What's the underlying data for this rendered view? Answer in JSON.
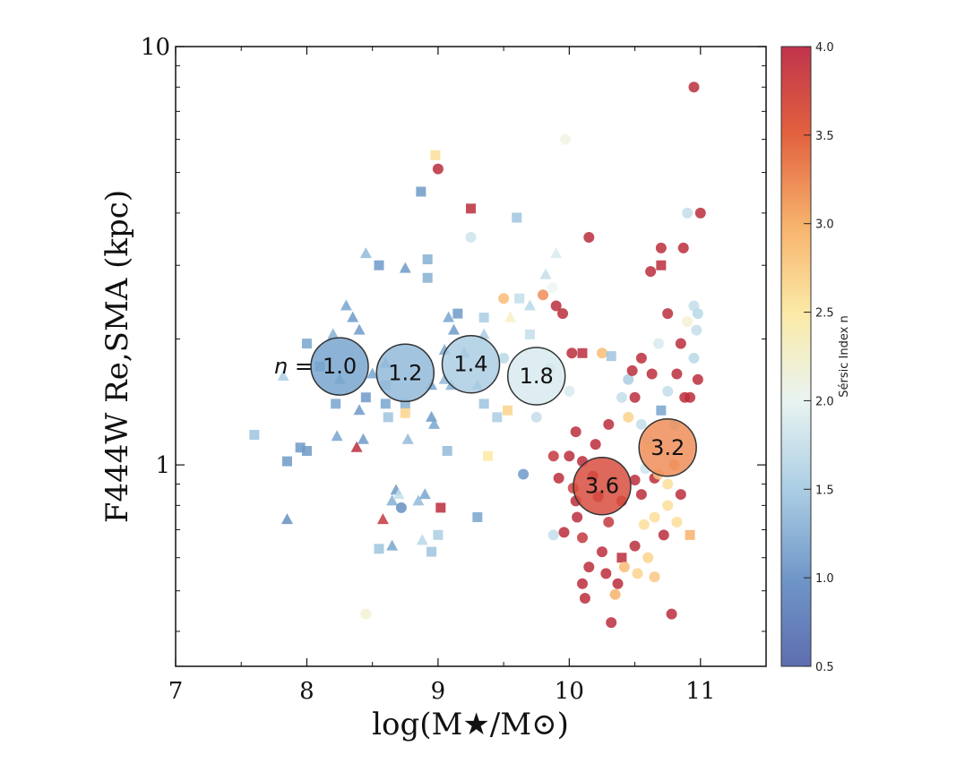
{
  "chart_data": {
    "type": "scatter",
    "xlabel": "log(M★/M⊙)",
    "ylabel": "F444W Re,SMA (kpc)",
    "xlim": [
      7,
      11.5
    ],
    "ylim": [
      0.33,
      10
    ],
    "yscale": "log",
    "x_ticks": [
      "7",
      "8",
      "9",
      "10",
      "11"
    ],
    "y_ticks": [
      "1",
      "10"
    ],
    "grid": false,
    "colorbar": {
      "label": "Sérsic Index n",
      "range": [
        0.5,
        4.0
      ],
      "ticks": [
        "0.5",
        "1.0",
        "1.5",
        "2.0",
        "2.5",
        "3.0",
        "3.5",
        "4.0"
      ],
      "colormap": "RdYlBu_r",
      "colors": [
        "#4c6cae",
        "#78a6cf",
        "#b8d8e8",
        "#eef6f2",
        "#fde9a4",
        "#f8b16b",
        "#e0593f",
        "#b2223b"
      ]
    },
    "n_prefix": "n =",
    "binned_medians": [
      {
        "x": 8.25,
        "y": 1.72,
        "n": 1.0,
        "label": "1.0"
      },
      {
        "x": 8.75,
        "y": 1.66,
        "n": 1.2,
        "label": "1.2"
      },
      {
        "x": 9.25,
        "y": 1.74,
        "n": 1.4,
        "label": "1.4"
      },
      {
        "x": 9.75,
        "y": 1.63,
        "n": 1.8,
        "label": "1.8"
      },
      {
        "x": 10.25,
        "y": 0.89,
        "n": 3.6,
        "label": "3.6"
      },
      {
        "x": 10.75,
        "y": 1.1,
        "n": 3.2,
        "label": "3.2"
      }
    ],
    "points": [
      {
        "x": 7.6,
        "y": 1.18,
        "n": 1.3,
        "m": "s"
      },
      {
        "x": 7.82,
        "y": 1.63,
        "n": 1.4,
        "m": "t"
      },
      {
        "x": 7.85,
        "y": 1.02,
        "n": 0.9,
        "m": "s"
      },
      {
        "x": 7.85,
        "y": 0.74,
        "n": 0.8,
        "m": "t"
      },
      {
        "x": 7.95,
        "y": 1.1,
        "n": 0.9,
        "m": "s"
      },
      {
        "x": 8.0,
        "y": 1.08,
        "n": 0.9,
        "m": "s"
      },
      {
        "x": 8.0,
        "y": 1.95,
        "n": 1.0,
        "m": "s"
      },
      {
        "x": 8.1,
        "y": 1.72,
        "n": 0.9,
        "m": "s"
      },
      {
        "x": 8.2,
        "y": 2.05,
        "n": 1.1,
        "m": "t"
      },
      {
        "x": 8.22,
        "y": 1.4,
        "n": 1.0,
        "m": "s"
      },
      {
        "x": 8.25,
        "y": 1.6,
        "n": 1.0,
        "m": "t"
      },
      {
        "x": 8.23,
        "y": 1.17,
        "n": 1.0,
        "m": "t"
      },
      {
        "x": 8.3,
        "y": 2.4,
        "n": 1.0,
        "m": "t"
      },
      {
        "x": 8.35,
        "y": 2.25,
        "n": 0.9,
        "m": "t"
      },
      {
        "x": 8.38,
        "y": 1.1,
        "n": 3.9,
        "m": "t"
      },
      {
        "x": 8.4,
        "y": 2.1,
        "n": 0.9,
        "m": "t"
      },
      {
        "x": 8.4,
        "y": 1.35,
        "n": 0.9,
        "m": "t"
      },
      {
        "x": 8.43,
        "y": 1.15,
        "n": 0.9,
        "m": "t"
      },
      {
        "x": 8.45,
        "y": 1.45,
        "n": 0.9,
        "m": "s"
      },
      {
        "x": 8.45,
        "y": 3.2,
        "n": 1.2,
        "m": "t"
      },
      {
        "x": 8.45,
        "y": 0.44,
        "n": 2.2,
        "m": "o"
      },
      {
        "x": 8.5,
        "y": 1.65,
        "n": 1.0,
        "m": "t"
      },
      {
        "x": 8.55,
        "y": 3.0,
        "n": 0.9,
        "m": "s"
      },
      {
        "x": 8.55,
        "y": 0.63,
        "n": 1.3,
        "m": "s"
      },
      {
        "x": 8.58,
        "y": 0.74,
        "n": 3.8,
        "m": "t"
      },
      {
        "x": 8.6,
        "y": 1.4,
        "n": 1.0,
        "m": "s"
      },
      {
        "x": 8.6,
        "y": 1.75,
        "n": 1.1,
        "m": "t"
      },
      {
        "x": 8.6,
        "y": 1.55,
        "n": 1.2,
        "m": "s"
      },
      {
        "x": 8.62,
        "y": 1.3,
        "n": 1.3,
        "m": "s"
      },
      {
        "x": 8.65,
        "y": 0.82,
        "n": 1.1,
        "m": "t"
      },
      {
        "x": 8.65,
        "y": 0.64,
        "n": 1.0,
        "m": "t"
      },
      {
        "x": 8.68,
        "y": 0.87,
        "n": 0.9,
        "m": "t"
      },
      {
        "x": 8.7,
        "y": 0.85,
        "n": 1.6,
        "m": "t"
      },
      {
        "x": 8.72,
        "y": 0.79,
        "n": 0.8,
        "m": "o"
      },
      {
        "x": 8.75,
        "y": 1.4,
        "n": 1.1,
        "m": "s"
      },
      {
        "x": 8.75,
        "y": 2.95,
        "n": 0.9,
        "m": "t"
      },
      {
        "x": 8.77,
        "y": 1.15,
        "n": 1.2,
        "m": "t"
      },
      {
        "x": 8.75,
        "y": 1.33,
        "n": 2.7,
        "m": "s"
      },
      {
        "x": 8.85,
        "y": 0.82,
        "n": 1.2,
        "m": "t"
      },
      {
        "x": 8.87,
        "y": 4.5,
        "n": 0.9,
        "m": "s"
      },
      {
        "x": 8.9,
        "y": 0.85,
        "n": 1.0,
        "m": "t"
      },
      {
        "x": 8.92,
        "y": 2.8,
        "n": 1.1,
        "m": "s"
      },
      {
        "x": 8.92,
        "y": 3.1,
        "n": 1.1,
        "m": "s"
      },
      {
        "x": 8.95,
        "y": 1.55,
        "n": 1.0,
        "m": "t"
      },
      {
        "x": 8.95,
        "y": 1.3,
        "n": 0.9,
        "m": "t"
      },
      {
        "x": 8.97,
        "y": 1.25,
        "n": 1.0,
        "m": "t"
      },
      {
        "x": 8.98,
        "y": 5.5,
        "n": 2.6,
        "m": "s"
      },
      {
        "x": 9.0,
        "y": 5.1,
        "n": 3.9,
        "m": "o"
      },
      {
        "x": 8.95,
        "y": 0.62,
        "n": 1.3,
        "m": "s"
      },
      {
        "x": 8.88,
        "y": 0.66,
        "n": 1.5,
        "m": "t"
      },
      {
        "x": 9.0,
        "y": 0.68,
        "n": 1.4,
        "m": "s"
      },
      {
        "x": 9.02,
        "y": 0.79,
        "n": 3.9,
        "m": "s"
      },
      {
        "x": 9.05,
        "y": 1.6,
        "n": 1.2,
        "m": "t"
      },
      {
        "x": 9.05,
        "y": 1.88,
        "n": 1.0,
        "m": "t"
      },
      {
        "x": 9.07,
        "y": 1.08,
        "n": 1.2,
        "m": "s"
      },
      {
        "x": 9.08,
        "y": 2.25,
        "n": 1.0,
        "m": "t"
      },
      {
        "x": 9.1,
        "y": 1.55,
        "n": 1.1,
        "m": "t"
      },
      {
        "x": 9.12,
        "y": 2.1,
        "n": 0.9,
        "m": "t"
      },
      {
        "x": 9.15,
        "y": 2.3,
        "n": 0.9,
        "m": "s"
      },
      {
        "x": 9.2,
        "y": 1.85,
        "n": 1.1,
        "m": "t"
      },
      {
        "x": 9.25,
        "y": 3.5,
        "n": 1.7,
        "m": "o"
      },
      {
        "x": 9.25,
        "y": 4.1,
        "n": 3.9,
        "m": "s"
      },
      {
        "x": 9.3,
        "y": 1.55,
        "n": 1.2,
        "m": "t"
      },
      {
        "x": 9.3,
        "y": 0.75,
        "n": 1.0,
        "m": "s"
      },
      {
        "x": 9.35,
        "y": 1.4,
        "n": 1.3,
        "m": "s"
      },
      {
        "x": 9.35,
        "y": 2.05,
        "n": 1.4,
        "m": "t"
      },
      {
        "x": 9.35,
        "y": 2.25,
        "n": 1.4,
        "m": "s"
      },
      {
        "x": 9.38,
        "y": 1.05,
        "n": 2.5,
        "m": "s"
      },
      {
        "x": 9.45,
        "y": 1.3,
        "n": 1.4,
        "m": "s"
      },
      {
        "x": 9.5,
        "y": 1.8,
        "n": 1.5,
        "m": "o"
      },
      {
        "x": 9.5,
        "y": 2.5,
        "n": 2.9,
        "m": "o"
      },
      {
        "x": 9.53,
        "y": 1.35,
        "n": 2.7,
        "m": "s"
      },
      {
        "x": 9.55,
        "y": 2.25,
        "n": 2.3,
        "m": "t"
      },
      {
        "x": 9.6,
        "y": 3.9,
        "n": 1.3,
        "m": "s"
      },
      {
        "x": 9.62,
        "y": 2.5,
        "n": 1.6,
        "m": "s"
      },
      {
        "x": 9.65,
        "y": 0.95,
        "n": 0.9,
        "m": "o"
      },
      {
        "x": 9.7,
        "y": 2.4,
        "n": 1.5,
        "m": "t"
      },
      {
        "x": 9.7,
        "y": 2.05,
        "n": 1.6,
        "m": "s"
      },
      {
        "x": 9.75,
        "y": 1.3,
        "n": 1.6,
        "m": "o"
      },
      {
        "x": 9.8,
        "y": 2.55,
        "n": 3.2,
        "m": "o"
      },
      {
        "x": 9.82,
        "y": 2.85,
        "n": 1.6,
        "m": "t"
      },
      {
        "x": 9.85,
        "y": 1.7,
        "n": 1.5,
        "m": "o"
      },
      {
        "x": 9.88,
        "y": 0.68,
        "n": 1.6,
        "m": "o"
      },
      {
        "x": 9.87,
        "y": 2.65,
        "n": 2.0,
        "m": "o"
      },
      {
        "x": 9.88,
        "y": 1.05,
        "n": 3.8,
        "m": "o"
      },
      {
        "x": 9.9,
        "y": 3.2,
        "n": 1.8,
        "m": "t"
      },
      {
        "x": 9.9,
        "y": 2.4,
        "n": 3.9,
        "m": "o"
      },
      {
        "x": 9.92,
        "y": 0.93,
        "n": 3.9,
        "m": "o"
      },
      {
        "x": 9.95,
        "y": 2.3,
        "n": 3.9,
        "m": "o"
      },
      {
        "x": 9.96,
        "y": 0.69,
        "n": 3.9,
        "m": "o"
      },
      {
        "x": 9.97,
        "y": 6.0,
        "n": 2.1,
        "m": "o"
      },
      {
        "x": 10.0,
        "y": 1.05,
        "n": 3.9,
        "m": "o"
      },
      {
        "x": 10.0,
        "y": 1.5,
        "n": 1.8,
        "m": "o"
      },
      {
        "x": 10.02,
        "y": 1.85,
        "n": 3.9,
        "m": "o"
      },
      {
        "x": 10.03,
        "y": 0.88,
        "n": 3.7,
        "m": "o"
      },
      {
        "x": 10.05,
        "y": 0.82,
        "n": 3.9,
        "m": "o"
      },
      {
        "x": 10.05,
        "y": 1.2,
        "n": 3.9,
        "m": "o"
      },
      {
        "x": 10.06,
        "y": 0.75,
        "n": 3.9,
        "m": "o"
      },
      {
        "x": 10.1,
        "y": 1.02,
        "n": 3.9,
        "m": "o"
      },
      {
        "x": 10.1,
        "y": 1.85,
        "n": 3.9,
        "m": "s"
      },
      {
        "x": 10.1,
        "y": 0.67,
        "n": 3.8,
        "m": "o"
      },
      {
        "x": 10.1,
        "y": 0.52,
        "n": 3.9,
        "m": "o"
      },
      {
        "x": 10.12,
        "y": 0.48,
        "n": 3.9,
        "m": "o"
      },
      {
        "x": 10.15,
        "y": 0.57,
        "n": 3.9,
        "m": "o"
      },
      {
        "x": 10.15,
        "y": 3.5,
        "n": 3.9,
        "m": "o"
      },
      {
        "x": 10.18,
        "y": 0.94,
        "n": 3.9,
        "m": "o"
      },
      {
        "x": 10.2,
        "y": 1.12,
        "n": 3.9,
        "m": "o"
      },
      {
        "x": 10.22,
        "y": 0.84,
        "n": 3.9,
        "m": "o"
      },
      {
        "x": 10.25,
        "y": 1.85,
        "n": 2.9,
        "m": "o"
      },
      {
        "x": 10.25,
        "y": 0.62,
        "n": 3.9,
        "m": "o"
      },
      {
        "x": 10.28,
        "y": 0.55,
        "n": 3.9,
        "m": "o"
      },
      {
        "x": 10.3,
        "y": 0.73,
        "n": 3.8,
        "m": "o"
      },
      {
        "x": 10.3,
        "y": 1.25,
        "n": 3.9,
        "m": "o"
      },
      {
        "x": 10.32,
        "y": 1.82,
        "n": 1.3,
        "m": "s"
      },
      {
        "x": 10.32,
        "y": 0.42,
        "n": 3.9,
        "m": "o"
      },
      {
        "x": 10.35,
        "y": 0.49,
        "n": 3.0,
        "m": "o"
      },
      {
        "x": 10.37,
        "y": 0.52,
        "n": 3.9,
        "m": "o"
      },
      {
        "x": 10.4,
        "y": 1.45,
        "n": 1.6,
        "m": "o"
      },
      {
        "x": 10.4,
        "y": 0.82,
        "n": 3.9,
        "m": "o"
      },
      {
        "x": 10.4,
        "y": 0.6,
        "n": 3.9,
        "m": "s"
      },
      {
        "x": 10.42,
        "y": 0.57,
        "n": 2.9,
        "m": "o"
      },
      {
        "x": 10.45,
        "y": 1.6,
        "n": 1.4,
        "m": "o"
      },
      {
        "x": 10.45,
        "y": 1.3,
        "n": 2.7,
        "m": "o"
      },
      {
        "x": 10.48,
        "y": 1.68,
        "n": 3.9,
        "m": "o"
      },
      {
        "x": 10.5,
        "y": 1.45,
        "n": 3.9,
        "m": "o"
      },
      {
        "x": 10.5,
        "y": 0.92,
        "n": 3.9,
        "m": "o"
      },
      {
        "x": 10.5,
        "y": 0.64,
        "n": 3.9,
        "m": "o"
      },
      {
        "x": 10.52,
        "y": 0.55,
        "n": 2.7,
        "m": "o"
      },
      {
        "x": 10.55,
        "y": 1.8,
        "n": 3.9,
        "m": "o"
      },
      {
        "x": 10.55,
        "y": 1.25,
        "n": 1.6,
        "m": "o"
      },
      {
        "x": 10.55,
        "y": 0.85,
        "n": 3.9,
        "m": "o"
      },
      {
        "x": 10.57,
        "y": 0.72,
        "n": 2.6,
        "m": "o"
      },
      {
        "x": 10.6,
        "y": 1.15,
        "n": 1.8,
        "m": "o"
      },
      {
        "x": 10.6,
        "y": 0.6,
        "n": 2.7,
        "m": "o"
      },
      {
        "x": 10.62,
        "y": 2.9,
        "n": 3.9,
        "m": "o"
      },
      {
        "x": 10.63,
        "y": 1.65,
        "n": 3.9,
        "m": "o"
      },
      {
        "x": 10.65,
        "y": 0.93,
        "n": 3.9,
        "m": "o"
      },
      {
        "x": 10.65,
        "y": 0.75,
        "n": 2.6,
        "m": "o"
      },
      {
        "x": 10.65,
        "y": 0.54,
        "n": 2.8,
        "m": "o"
      },
      {
        "x": 10.68,
        "y": 1.95,
        "n": 1.8,
        "m": "o"
      },
      {
        "x": 10.7,
        "y": 1.35,
        "n": 1.0,
        "m": "s"
      },
      {
        "x": 10.7,
        "y": 3.3,
        "n": 3.9,
        "m": "o"
      },
      {
        "x": 10.7,
        "y": 3.0,
        "n": 3.9,
        "m": "s"
      },
      {
        "x": 10.72,
        "y": 0.68,
        "n": 3.9,
        "m": "o"
      },
      {
        "x": 10.75,
        "y": 2.3,
        "n": 3.9,
        "m": "o"
      },
      {
        "x": 10.75,
        "y": 1.5,
        "n": 1.6,
        "m": "o"
      },
      {
        "x": 10.75,
        "y": 0.9,
        "n": 2.6,
        "m": "o"
      },
      {
        "x": 10.75,
        "y": 0.8,
        "n": 2.6,
        "m": "o"
      },
      {
        "x": 10.78,
        "y": 0.44,
        "n": 3.9,
        "m": "o"
      },
      {
        "x": 10.8,
        "y": 1.25,
        "n": 1.5,
        "m": "o"
      },
      {
        "x": 10.8,
        "y": 1.0,
        "n": 3.1,
        "m": "o"
      },
      {
        "x": 10.82,
        "y": 1.65,
        "n": 3.9,
        "m": "o"
      },
      {
        "x": 10.82,
        "y": 0.73,
        "n": 2.6,
        "m": "o"
      },
      {
        "x": 10.85,
        "y": 1.95,
        "n": 3.9,
        "m": "o"
      },
      {
        "x": 10.85,
        "y": 0.85,
        "n": 3.9,
        "m": "o"
      },
      {
        "x": 10.87,
        "y": 3.3,
        "n": 3.9,
        "m": "o"
      },
      {
        "x": 10.88,
        "y": 1.45,
        "n": 3.9,
        "m": "o"
      },
      {
        "x": 10.9,
        "y": 4.0,
        "n": 1.6,
        "m": "o"
      },
      {
        "x": 10.9,
        "y": 2.2,
        "n": 2.2,
        "m": "o"
      },
      {
        "x": 10.92,
        "y": 1.45,
        "n": 3.9,
        "m": "o"
      },
      {
        "x": 10.92,
        "y": 0.68,
        "n": 3.0,
        "m": "s"
      },
      {
        "x": 10.95,
        "y": 8.0,
        "n": 3.9,
        "m": "o"
      },
      {
        "x": 10.95,
        "y": 2.4,
        "n": 1.6,
        "m": "o"
      },
      {
        "x": 10.95,
        "y": 1.8,
        "n": 1.5,
        "m": "o"
      },
      {
        "x": 10.97,
        "y": 2.1,
        "n": 1.6,
        "m": "o"
      },
      {
        "x": 10.98,
        "y": 1.6,
        "n": 3.9,
        "m": "o"
      },
      {
        "x": 11.0,
        "y": 4.0,
        "n": 3.9,
        "m": "o"
      },
      {
        "x": 10.98,
        "y": 2.3,
        "n": 1.5,
        "m": "o"
      },
      {
        "x": 10.62,
        "y": 1.1,
        "n": 2.4,
        "m": "o"
      },
      {
        "x": 10.68,
        "y": 0.95,
        "n": 2.8,
        "m": "o"
      },
      {
        "x": 10.58,
        "y": 0.98,
        "n": 1.7,
        "m": "o"
      }
    ]
  }
}
